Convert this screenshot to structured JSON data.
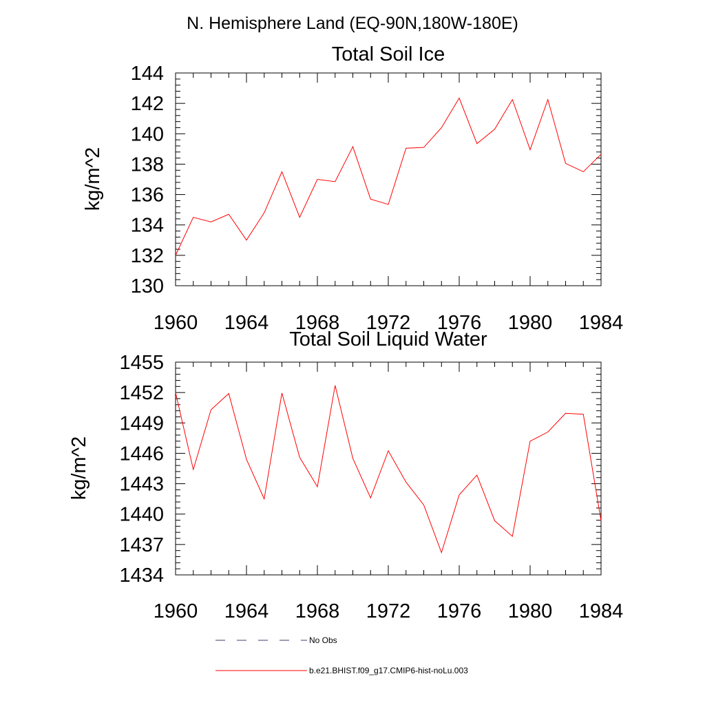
{
  "figure": {
    "title": "N. Hemisphere Land (EQ-90N,180W-180E)"
  },
  "chart_data": [
    {
      "type": "line",
      "title": "Total Soil Ice",
      "xlabel": "",
      "ylabel": "kg/m^2",
      "xlim": [
        1960,
        1984
      ],
      "ylim": [
        130,
        144
      ],
      "x_ticks": [
        1960,
        1964,
        1968,
        1972,
        1976,
        1980,
        1984
      ],
      "y_ticks": [
        130,
        132,
        134,
        136,
        138,
        140,
        142,
        144
      ],
      "grid": false,
      "series": [
        {
          "name": "b.e21.BHIST.f09_g17.CMIP6-hist-noLu.003",
          "color": "#ff0000",
          "x": [
            1960,
            1961,
            1962,
            1963,
            1964,
            1965,
            1966,
            1967,
            1968,
            1969,
            1970,
            1971,
            1972,
            1973,
            1974,
            1975,
            1976,
            1977,
            1978,
            1979,
            1980,
            1981,
            1982,
            1983,
            1984
          ],
          "values": [
            132.0,
            134.5,
            134.2,
            134.7,
            133.0,
            134.8,
            137.5,
            134.5,
            137.0,
            136.85,
            139.15,
            135.7,
            135.35,
            139.05,
            139.1,
            140.4,
            142.35,
            139.35,
            140.3,
            142.25,
            138.95,
            142.25,
            138.05,
            137.5,
            138.65
          ]
        }
      ]
    },
    {
      "type": "line",
      "title": "Total Soil Liquid Water",
      "xlabel": "",
      "ylabel": "kg/m^2",
      "xlim": [
        1960,
        1984
      ],
      "ylim": [
        1434,
        1455
      ],
      "x_ticks": [
        1960,
        1964,
        1968,
        1972,
        1976,
        1980,
        1984
      ],
      "y_ticks": [
        1434,
        1437,
        1440,
        1443,
        1446,
        1449,
        1452,
        1455
      ],
      "grid": false,
      "series": [
        {
          "name": "b.e21.BHIST.f09_g17.CMIP6-hist-noLu.003",
          "color": "#ff0000",
          "x": [
            1960,
            1961,
            1962,
            1963,
            1964,
            1965,
            1966,
            1967,
            1968,
            1969,
            1970,
            1971,
            1972,
            1973,
            1974,
            1975,
            1976,
            1977,
            1978,
            1979,
            1980,
            1981,
            1982,
            1983,
            1984
          ],
          "values": [
            1452.0,
            1444.4,
            1450.3,
            1451.9,
            1445.4,
            1441.5,
            1451.95,
            1445.6,
            1442.7,
            1452.7,
            1445.5,
            1441.6,
            1446.25,
            1443.15,
            1440.9,
            1436.2,
            1441.9,
            1443.85,
            1439.35,
            1437.8,
            1447.2,
            1448.1,
            1449.95,
            1449.85,
            1439.35
          ]
        }
      ]
    }
  ],
  "legend": {
    "placement": "bottom",
    "items": [
      {
        "label": "No Obs",
        "style": "dashed",
        "color": "#3b3b6b"
      },
      {
        "label": "b.e21.BHIST.f09_g17.CMIP6-hist-noLu.003",
        "style": "solid",
        "color": "#ff0000"
      }
    ]
  }
}
